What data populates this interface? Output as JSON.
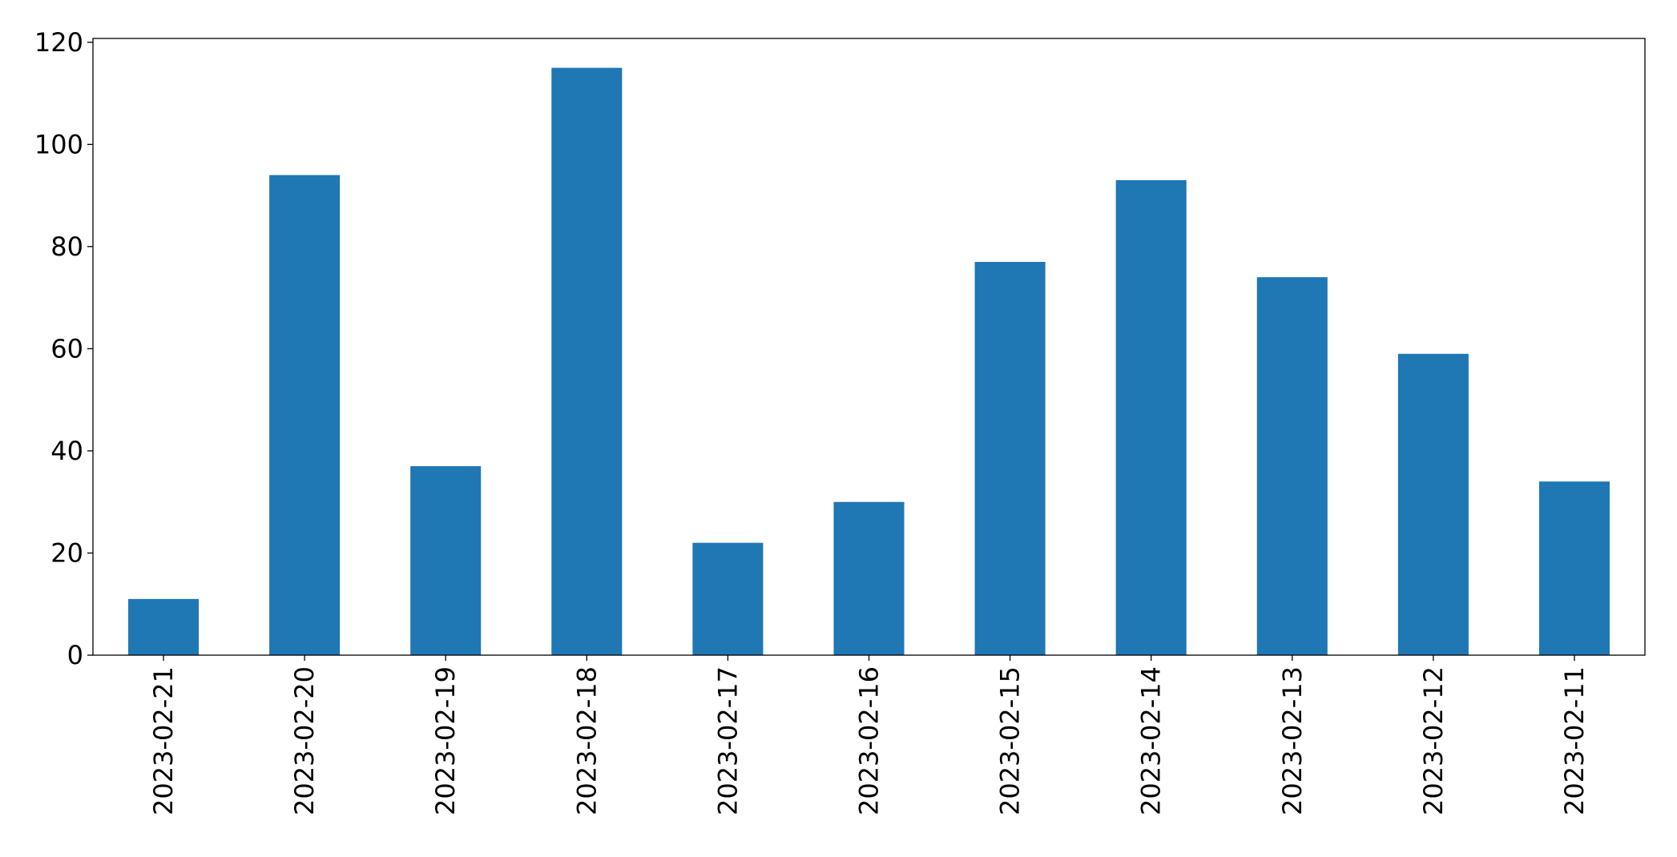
{
  "chart_data": {
    "type": "bar",
    "categories": [
      "2023-02-21",
      "2023-02-20",
      "2023-02-19",
      "2023-02-18",
      "2023-02-17",
      "2023-02-16",
      "2023-02-15",
      "2023-02-14",
      "2023-02-13",
      "2023-02-12",
      "2023-02-11"
    ],
    "values": [
      11,
      94,
      37,
      115,
      22,
      30,
      77,
      93,
      74,
      59,
      34
    ],
    "color": "#1f77b4",
    "ylim": [
      0,
      120.75
    ],
    "yticks": [
      0,
      20,
      40,
      60,
      80,
      100,
      120
    ],
    "grid": false
  }
}
